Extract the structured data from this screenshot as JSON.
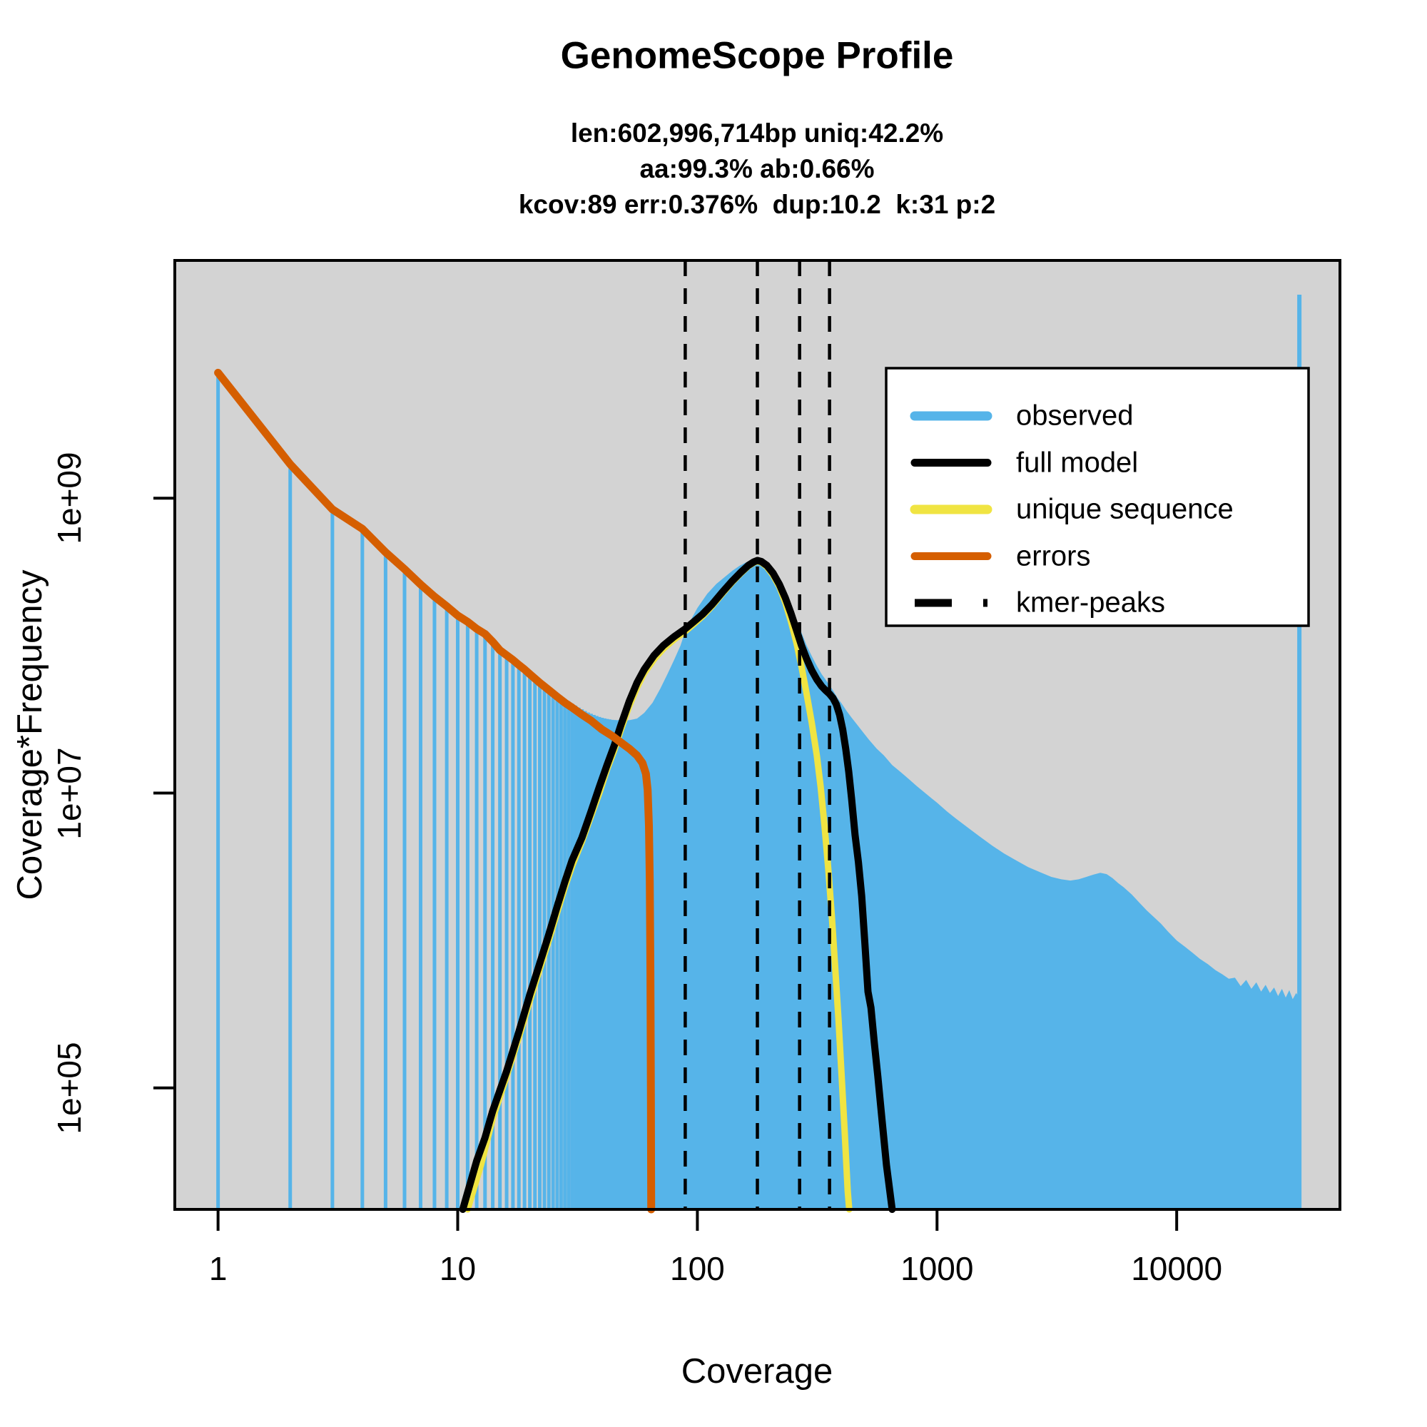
{
  "title": "GenomeScope Profile",
  "subtitle_lines": [
    "len:602,996,714bp uniq:42.2%",
    "aa:99.3% ab:0.66%",
    "kcov:89 err:0.376%  dup:10.2  k:31 p:2"
  ],
  "axes": {
    "x_label": "Coverage",
    "y_label": "Coverage*Frequency",
    "x_ticks": [
      "1",
      "10",
      "100",
      "1000",
      "10000"
    ],
    "x_tick_values": [
      1,
      10,
      100,
      1000,
      10000
    ],
    "y_ticks": [
      "1e+05",
      "1e+07",
      "1e+09"
    ],
    "y_tick_values": [
      100000.0,
      10000000.0,
      1000000000.0
    ]
  },
  "legend": {
    "items": [
      {
        "label": "observed",
        "color": "#56B4E9",
        "dash": "",
        "width": 13
      },
      {
        "label": "full model",
        "color": "#000000",
        "dash": "",
        "width": 11
      },
      {
        "label": "unique sequence",
        "color": "#F0E442",
        "dash": "",
        "width": 13
      },
      {
        "label": "errors",
        "color": "#D55E00",
        "dash": "",
        "width": 11
      },
      {
        "label": "kmer-peaks",
        "color": "#000000",
        "dash": "52 44",
        "width": 11
      }
    ]
  },
  "colors": {
    "observed": "#56B4E9",
    "full_model": "#000000",
    "unique_sequence": "#F0E442",
    "errors": "#D55E00",
    "plot_bg": "#D3D3D3",
    "frame": "#000000"
  },
  "chart_data": {
    "type": "area",
    "title": "GenomeScope Profile",
    "xlabel": "Coverage",
    "ylabel": "Coverage*Frequency",
    "x_scale": "log",
    "y_scale": "log",
    "xlim": [
      0.66,
      48000
    ],
    "ylim": [
      15000.0,
      41000000000.0
    ],
    "grid": false,
    "legend_position": "upper right inside",
    "kmer_peaks": [
      89,
      178,
      267,
      356
    ],
    "observed_bars": [
      [
        1,
        7100000000.0
      ],
      [
        2,
        1700000000.0
      ],
      [
        3,
        840000000.0
      ],
      [
        4,
        620000000.0
      ],
      [
        5,
        430000000.0
      ],
      [
        6,
        330000000.0
      ],
      [
        7,
        260000000.0
      ],
      [
        8,
        215000000.0
      ],
      [
        9,
        185000000.0
      ],
      [
        10,
        162000000.0
      ],
      [
        11,
        145000000.0
      ],
      [
        12,
        132000000.0
      ],
      [
        13,
        120000000.0
      ],
      [
        14,
        106000000.0
      ],
      [
        15,
        94000000.0
      ],
      [
        16,
        87000000.0
      ],
      [
        17,
        81000000.0
      ],
      [
        18,
        75000000.0
      ],
      [
        19,
        70000000.0
      ],
      [
        20,
        65000000.0
      ],
      [
        21,
        61000000.0
      ],
      [
        22,
        57500000.0
      ],
      [
        23,
        54500000.0
      ],
      [
        24,
        52000000.0
      ],
      [
        25,
        49500000.0
      ],
      [
        26,
        47500000.0
      ],
      [
        27,
        45500000.0
      ],
      [
        28,
        43500000.0
      ],
      [
        29,
        42000000.0
      ],
      [
        30,
        40500000.0
      ],
      [
        31,
        39200000.0
      ],
      [
        32,
        38000000.0
      ],
      [
        33,
        37000000.0
      ],
      [
        34,
        36000000.0
      ],
      [
        35,
        35200000.0
      ],
      [
        36,
        34500000.0
      ],
      [
        37,
        33900000.0
      ],
      [
        38,
        33300000.0
      ],
      [
        39,
        32800000.0
      ],
      [
        40,
        32400000.0
      ],
      [
        41,
        32100000.0
      ],
      [
        42,
        31800000.0
      ],
      [
        43,
        31600000.0
      ],
      [
        44,
        31400000.0
      ],
      [
        45,
        31300000.0
      ],
      [
        46,
        31200000.0
      ],
      [
        47,
        31200000.0
      ],
      [
        48,
        31200000.0
      ],
      [
        49,
        31300000.0
      ],
      [
        50,
        31400000.0
      ]
    ],
    "observed_area": [
      [
        48,
        31200000.0
      ],
      [
        52,
        31200000.0
      ],
      [
        56,
        32000000.0
      ],
      [
        60,
        35000000.0
      ],
      [
        65,
        41000000.0
      ],
      [
        70,
        51000000.0
      ],
      [
        75,
        64000000.0
      ],
      [
        80,
        80000000.0
      ],
      [
        85,
        100000000.0
      ],
      [
        89,
        125000000.0
      ],
      [
        93,
        145000000.0
      ],
      [
        100,
        180000000.0
      ],
      [
        110,
        225000000.0
      ],
      [
        120,
        262000000.0
      ],
      [
        130,
        292000000.0
      ],
      [
        140,
        322000000.0
      ],
      [
        150,
        348000000.0
      ],
      [
        160,
        368000000.0
      ],
      [
        170,
        386000000.0
      ],
      [
        178,
        394000000.0
      ],
      [
        186,
        388000000.0
      ],
      [
        195,
        362000000.0
      ],
      [
        205,
        325000000.0
      ],
      [
        215,
        282000000.0
      ],
      [
        225,
        245000000.0
      ],
      [
        235,
        210000000.0
      ],
      [
        245,
        180000000.0
      ],
      [
        255,
        156000000.0
      ],
      [
        265,
        136000000.0
      ],
      [
        275,
        117000000.0
      ],
      [
        285,
        101000000.0
      ],
      [
        300,
        85000000.0
      ],
      [
        315,
        73000000.0
      ],
      [
        330,
        64000000.0
      ],
      [
        345,
        58000000.0
      ],
      [
        356,
        54000000.0
      ],
      [
        370,
        49000000.0
      ],
      [
        385,
        44000000.0
      ],
      [
        400,
        40500000.0
      ],
      [
        420,
        36000000.0
      ],
      [
        440,
        32500000.0
      ],
      [
        465,
        29000000.0
      ],
      [
        490,
        26000000.0
      ],
      [
        520,
        23000000.0
      ],
      [
        560,
        20000000.0
      ],
      [
        600,
        18000000.0
      ],
      [
        650,
        15500000.0
      ],
      [
        700,
        14000000.0
      ],
      [
        760,
        12500000.0
      ],
      [
        820,
        11200000.0
      ],
      [
        880,
        10200000.0
      ],
      [
        950,
        9200000.0
      ],
      [
        1000,
        8600000.0
      ],
      [
        1100,
        7500000.0
      ],
      [
        1200,
        6700000.0
      ],
      [
        1350,
        5800000.0
      ],
      [
        1500,
        5100000.0
      ],
      [
        1700,
        4400000.0
      ],
      [
        1900,
        3900000.0
      ],
      [
        2100,
        3550000.0
      ],
      [
        2400,
        3150000.0
      ],
      [
        2700,
        2900000.0
      ],
      [
        3000,
        2700000.0
      ],
      [
        3300,
        2600000.0
      ],
      [
        3600,
        2550000.0
      ],
      [
        3900,
        2600000.0
      ],
      [
        4200,
        2700000.0
      ],
      [
        4500,
        2800000.0
      ],
      [
        4800,
        2880000.0
      ],
      [
        5100,
        2820000.0
      ],
      [
        5400,
        2650000.0
      ],
      [
        5700,
        2450000.0
      ],
      [
        6000,
        2300000.0
      ],
      [
        6500,
        2050000.0
      ],
      [
        7000,
        1800000.0
      ],
      [
        7500,
        1600000.0
      ],
      [
        8000,
        1450000.0
      ],
      [
        8600,
        1300000.0
      ],
      [
        9200,
        1150000.0
      ],
      [
        10000,
        1000000.0
      ],
      [
        10800,
        910000.0
      ],
      [
        11600,
        830000.0
      ],
      [
        12500,
        750000.0
      ],
      [
        13500,
        690000.0
      ],
      [
        14500,
        630000.0
      ],
      [
        15500,
        590000.0
      ],
      [
        16500,
        550000.0
      ],
      [
        17500,
        560000.0
      ],
      [
        18500,
        490000.0
      ],
      [
        19500,
        540000.0
      ],
      [
        20500,
        470000.0
      ],
      [
        21500,
        520000.0
      ],
      [
        22500,
        450000.0
      ],
      [
        23500,
        500000.0
      ],
      [
        24500,
        440000.0
      ],
      [
        25500,
        480000.0
      ],
      [
        26500,
        420000.0
      ],
      [
        27500,
        470000.0
      ],
      [
        28500,
        410000.0
      ],
      [
        29500,
        460000.0
      ],
      [
        30500,
        400000.0
      ],
      [
        31500,
        440000.0
      ],
      [
        32500,
        410000.0
      ]
    ],
    "observed_spike": {
      "coverage": 32500,
      "value": 24000000000.0
    },
    "full_model": [
      [
        10.5,
        15000.0
      ],
      [
        12,
        32000.0
      ],
      [
        13,
        46000.0
      ],
      [
        14,
        70000.0
      ],
      [
        16,
        130000.0
      ],
      [
        18,
        240000.0
      ],
      [
        20,
        430000.0
      ],
      [
        22,
        700000.0
      ],
      [
        24,
        1100000.0
      ],
      [
        26,
        1700000.0
      ],
      [
        28,
        2500000.0
      ],
      [
        30,
        3500000.0
      ],
      [
        33,
        5000000.0
      ],
      [
        36,
        7500000.0
      ],
      [
        39,
        11000000.0
      ],
      [
        42,
        15500000.0
      ],
      [
        45,
        21000000.0
      ],
      [
        48,
        29000000.0
      ],
      [
        52,
        42000000.0
      ],
      [
        56,
        56000000.0
      ],
      [
        60,
        69000000.0
      ],
      [
        66,
        86000000.0
      ],
      [
        72,
        100000000.0
      ],
      [
        80,
        115000000.0
      ],
      [
        89,
        130000000.0
      ],
      [
        96,
        144000000.0
      ],
      [
        105,
        163000000.0
      ],
      [
        115,
        190000000.0
      ],
      [
        127,
        230000000.0
      ],
      [
        140,
        275000000.0
      ],
      [
        152,
        315000000.0
      ],
      [
        163,
        350000000.0
      ],
      [
        172,
        370000000.0
      ],
      [
        178,
        378000000.0
      ],
      [
        185,
        372000000.0
      ],
      [
        195,
        350000000.0
      ],
      [
        207,
        310000000.0
      ],
      [
        220,
        260000000.0
      ],
      [
        233,
        210000000.0
      ],
      [
        246,
        165000000.0
      ],
      [
        259,
        128000000.0
      ],
      [
        272,
        100000000.0
      ],
      [
        285,
        82000000.0
      ],
      [
        300,
        68000000.0
      ],
      [
        315,
        59000000.0
      ],
      [
        330,
        53000000.0
      ],
      [
        344,
        49500000.0
      ],
      [
        356,
        47000000.0
      ],
      [
        368,
        44000000.0
      ],
      [
        380,
        40000000.0
      ],
      [
        392,
        34000000.0
      ],
      [
        404,
        27000000.0
      ],
      [
        416,
        20000000.0
      ],
      [
        428,
        14000000.0
      ],
      [
        440,
        9200000.0
      ],
      [
        455,
        5200000.0
      ],
      [
        470,
        3400000.0
      ],
      [
        485,
        2000000.0
      ],
      [
        500,
        950000.0
      ],
      [
        515,
        450000.0
      ],
      [
        530,
        350000.0
      ],
      [
        548,
        200000.0
      ],
      [
        566,
        120000.0
      ],
      [
        590,
        60000.0
      ],
      [
        615,
        30000.0
      ],
      [
        650,
        15000.0
      ]
    ],
    "unique_sequence": [
      [
        11,
        15000.0
      ],
      [
        12.5,
        30000.0
      ],
      [
        14,
        62000.0
      ],
      [
        16,
        120000.0
      ],
      [
        18,
        220000.0
      ],
      [
        20,
        390000.0
      ],
      [
        22,
        640000.0
      ],
      [
        24,
        1000000.0
      ],
      [
        26,
        1550000.0
      ],
      [
        28,
        2300000.0
      ],
      [
        30,
        3200000.0
      ],
      [
        33,
        4700000.0
      ],
      [
        36,
        7000000.0
      ],
      [
        39,
        10000000.0
      ],
      [
        42,
        14500000.0
      ],
      [
        45,
        19500000.0
      ],
      [
        48,
        27000000.0
      ],
      [
        52,
        39000000.0
      ],
      [
        56,
        52000000.0
      ],
      [
        60,
        65000000.0
      ],
      [
        66,
        81000000.0
      ],
      [
        72,
        95000000.0
      ],
      [
        80,
        110000000.0
      ],
      [
        89,
        125000000.0
      ],
      [
        96,
        139000000.0
      ],
      [
        105,
        158000000.0
      ],
      [
        115,
        185000000.0
      ],
      [
        127,
        225000000.0
      ],
      [
        140,
        270000000.0
      ],
      [
        152,
        310000000.0
      ],
      [
        163,
        345000000.0
      ],
      [
        172,
        365000000.0
      ],
      [
        178,
        373000000.0
      ],
      [
        185,
        366000000.0
      ],
      [
        195,
        342000000.0
      ],
      [
        207,
        300000000.0
      ],
      [
        220,
        250000000.0
      ],
      [
        233,
        195000000.0
      ],
      [
        246,
        145000000.0
      ],
      [
        259,
        105000000.0
      ],
      [
        272,
        72000000.0
      ],
      [
        285,
        48000000.0
      ],
      [
        300,
        30000000.0
      ],
      [
        315,
        18000000.0
      ],
      [
        327,
        11000000.0
      ],
      [
        340,
        5800000.0
      ],
      [
        352,
        3000000.0
      ],
      [
        364,
        1450000.0
      ],
      [
        376,
        650000.0
      ],
      [
        388,
        290000.0
      ],
      [
        400,
        120000.0
      ],
      [
        412,
        50000.0
      ],
      [
        424,
        20000.0
      ],
      [
        430,
        15000.0
      ]
    ],
    "errors": [
      [
        1,
        7100000000.0
      ],
      [
        2,
        1700000000.0
      ],
      [
        3,
        840000000.0
      ],
      [
        4,
        620000000.0
      ],
      [
        5,
        430000000.0
      ],
      [
        6,
        330000000.0
      ],
      [
        7,
        260000000.0
      ],
      [
        8,
        215000000.0
      ],
      [
        9,
        185000000.0
      ],
      [
        10,
        160000000.0
      ],
      [
        11,
        145000000.0
      ],
      [
        12,
        130000000.0
      ],
      [
        13,
        120000000.0
      ],
      [
        14,
        106000000.0
      ],
      [
        15,
        93000000.0
      ],
      [
        16,
        86000000.0
      ],
      [
        17,
        80000000.0
      ],
      [
        18,
        74000000.0
      ],
      [
        19,
        69000000.0
      ],
      [
        20,
        64000000.0
      ],
      [
        22,
        56000000.0
      ],
      [
        24,
        50000000.0
      ],
      [
        26,
        45000000.0
      ],
      [
        28,
        41000000.0
      ],
      [
        30,
        38000000.0
      ],
      [
        33,
        34000000.0
      ],
      [
        36,
        31000000.0
      ],
      [
        40,
        27000000.0
      ],
      [
        44,
        24500000.0
      ],
      [
        48,
        22000000.0
      ],
      [
        52,
        20000000.0
      ],
      [
        56,
        18000000.0
      ],
      [
        59,
        16000000.0
      ],
      [
        61,
        13500000.0
      ],
      [
        62,
        10500000.0
      ],
      [
        62.8,
        6000000.0
      ],
      [
        63.3,
        2500000.0
      ],
      [
        63.7,
        600000.0
      ],
      [
        64,
        80000.0
      ],
      [
        64.2,
        15000.0
      ]
    ]
  }
}
